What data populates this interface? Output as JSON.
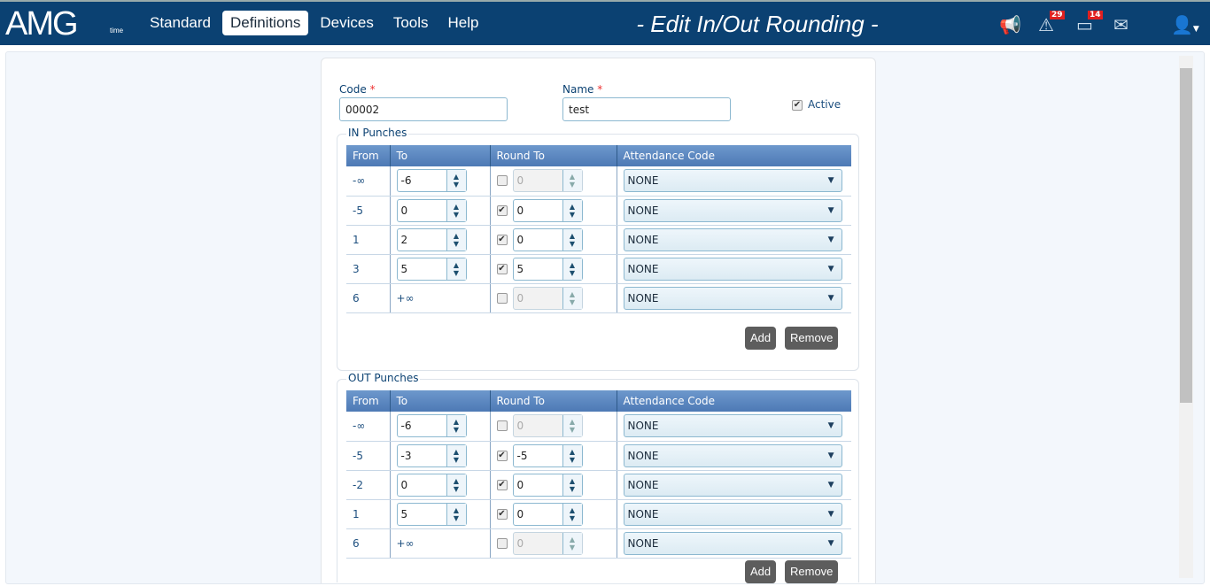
{
  "header": {
    "logo": "AMG",
    "logo_sub": "time",
    "nav": [
      {
        "label": "Standard"
      },
      {
        "label": "Definitions",
        "active": true
      },
      {
        "label": "Devices"
      },
      {
        "label": "Tools"
      },
      {
        "label": "Help"
      }
    ],
    "title": "- Edit In/Out Rounding -",
    "alerts_badge": "29",
    "calendar_badge": "14"
  },
  "form": {
    "code_label": "Code",
    "code_value": "00002",
    "name_label": "Name",
    "name_value": "test",
    "required": "*",
    "active_label": "Active",
    "active": true
  },
  "columns": [
    "From",
    "To",
    "Round To",
    "Attendance Code"
  ],
  "in": {
    "legend": "IN Punches",
    "rows": [
      {
        "from": "-∞",
        "to": "-6",
        "round_checked": false,
        "round": "0",
        "code": "NONE"
      },
      {
        "from": "-5",
        "to": "0",
        "round_checked": true,
        "round": "0",
        "code": "NONE"
      },
      {
        "from": "1",
        "to": "2",
        "round_checked": true,
        "round": "0",
        "code": "NONE"
      },
      {
        "from": "3",
        "to": "5",
        "round_checked": true,
        "round": "5",
        "code": "NONE"
      },
      {
        "from": "6",
        "to": "+∞",
        "round_checked": false,
        "round": "0",
        "code": "NONE"
      }
    ],
    "add": "Add",
    "remove": "Remove"
  },
  "out": {
    "legend": "OUT Punches",
    "rows": [
      {
        "from": "-∞",
        "to": "-6",
        "round_checked": false,
        "round": "0",
        "code": "NONE"
      },
      {
        "from": "-5",
        "to": "-3",
        "round_checked": true,
        "round": "-5",
        "code": "NONE"
      },
      {
        "from": "-2",
        "to": "0",
        "round_checked": true,
        "round": "0",
        "code": "NONE"
      },
      {
        "from": "1",
        "to": "5",
        "round_checked": true,
        "round": "0",
        "code": "NONE"
      },
      {
        "from": "6",
        "to": "+∞",
        "round_checked": false,
        "round": "0",
        "code": "NONE"
      }
    ]
  }
}
